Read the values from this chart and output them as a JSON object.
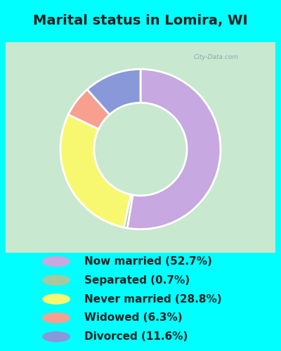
{
  "title": "Marital status in Lomira, WI",
  "categories": [
    "Now married",
    "Separated",
    "Never married",
    "Widowed",
    "Divorced"
  ],
  "values": [
    52.7,
    0.7,
    28.8,
    6.3,
    11.6
  ],
  "colors": [
    "#c8a8e0",
    "#a8c8a0",
    "#f8f870",
    "#f8a090",
    "#8898d8"
  ],
  "legend_labels": [
    "Now married (52.7%)",
    "Separated (0.7%)",
    "Never married (28.8%)",
    "Widowed (6.3%)",
    "Divorced (11.6%)"
  ],
  "legend_colors": [
    "#c8a8e0",
    "#a8c8a0",
    "#f8f870",
    "#f8a090",
    "#8898d8"
  ],
  "bg_outer": "#00ffff",
  "bg_chart": "#c8e8d0",
  "title_color": "#222222",
  "title_fontsize": 14,
  "legend_fontsize": 11,
  "watermark": "City-Data.com",
  "fig_width": 4.0,
  "fig_height": 5.0
}
